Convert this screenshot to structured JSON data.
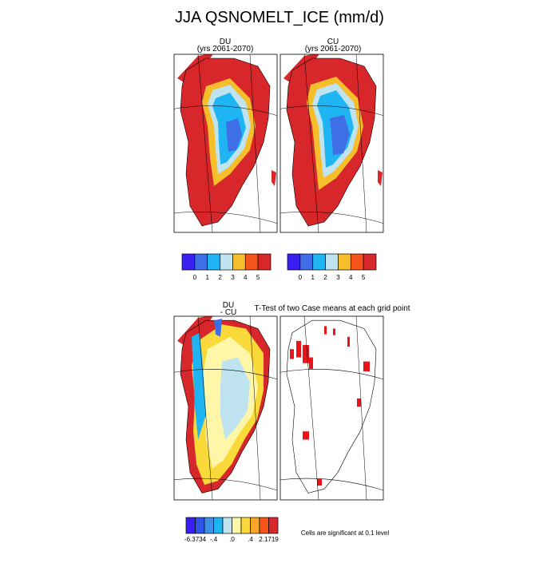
{
  "title": "JJA QSNOMELT_ICE (mm/d)",
  "panels": [
    {
      "title": "DU",
      "subtitle": "(yrs 2061-2070)"
    },
    {
      "title": "CU",
      "subtitle": "(yrs 2061-2070)"
    },
    {
      "title": "DU",
      "subtitle": "- CU"
    },
    {
      "title": "T-Test of two Case means at each grid point"
    }
  ],
  "colorbars": [
    {
      "colors": [
        "#3a1ff2",
        "#3f6fe6",
        "#1fb5f2",
        "#bfe3ef",
        "#f7be2b",
        "#f5541c",
        "#d7272a"
      ],
      "labels": [
        "0",
        "1",
        "2",
        "3",
        "4",
        "5"
      ]
    },
    {
      "colors": [
        "#3a1ff2",
        "#3f6fe6",
        "#1fb5f2",
        "#bfe3ef",
        "#f7be2b",
        "#f5541c",
        "#d7272a"
      ],
      "labels": [
        "0",
        "1",
        "2",
        "3",
        "4",
        "5"
      ]
    },
    {
      "colors": [
        "#3a1ff2",
        "#2f55e8",
        "#3f8ee8",
        "#1fb5f2",
        "#bfe3ef",
        "#fff6a8",
        "#f9da3a",
        "#f7a52b",
        "#f5541c",
        "#d7272a"
      ],
      "labels": [
        "-6.3734",
        "-.4",
        ".0",
        ".4",
        "2.1719"
      ]
    }
  ],
  "note": "Cells are significant at 0.1 level"
}
